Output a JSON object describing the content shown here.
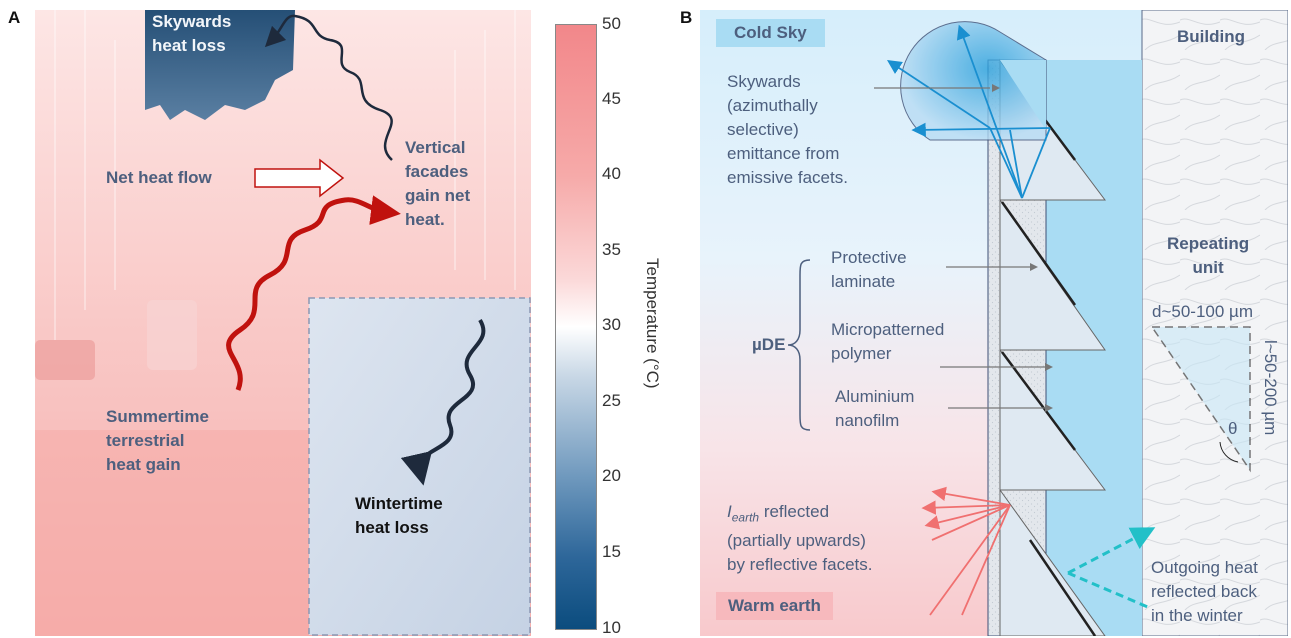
{
  "panel_a": {
    "letter": "A",
    "labels": {
      "skywards_loss": [
        "Skywards",
        "heat loss"
      ],
      "net_flow": "Net heat flow",
      "vertical_gain": [
        "Vertical",
        "facades",
        "gain net",
        "heat."
      ],
      "summer_gain": [
        "Summertime",
        "terrestrial",
        "heat gain"
      ],
      "winter_loss": [
        "Wintertime",
        "heat loss"
      ]
    },
    "colors": {
      "warm": "#f7b5b2",
      "cool": "#c9d6e8",
      "sky": "#2f5a80",
      "summer_arrow": "#c0120e",
      "dark_arrow": "#1e2a3c"
    }
  },
  "colorbar": {
    "ticks": [
      "50",
      "45",
      "40",
      "35",
      "30",
      "25",
      "20",
      "15",
      "10"
    ],
    "title": "Temperature (°C)",
    "colors": {
      "top": "#f2878a",
      "mid": "#ffffff",
      "bottom": "#0b4c7e"
    }
  },
  "panel_b": {
    "letter": "B",
    "labels": {
      "cold_sky": "Cold Sky",
      "building": "Building",
      "skywards": [
        "Skywards",
        "(azimuthally",
        "selective)",
        "emittance from",
        "emissive facets."
      ],
      "protective": [
        "Protective",
        "laminate"
      ],
      "udeb": "µDE",
      "micropatterned": [
        "Micropatterned",
        "polymer"
      ],
      "aluminium": [
        "Aluminium",
        "nanofilm"
      ],
      "earth_prefix": "I",
      "earth_sub": "earth",
      "earth_reflected": [
        " reflected",
        "(partially upwards)",
        "by reflective facets."
      ],
      "warm_earth": "Warm earth",
      "repeating": [
        "Repeating",
        "unit"
      ],
      "d_dim": "d~50-100 µm",
      "l_dim": "l~50-200 µm",
      "theta": "θ",
      "outgoing": [
        "Outgoing heat",
        "reflected back",
        "in the winter"
      ]
    },
    "colors": {
      "blue_arrow": "#1a8fd0",
      "red_arrow": "#f07070",
      "teal_arrow": "#22c0c8",
      "label_bg": "#bfe6f7"
    }
  }
}
